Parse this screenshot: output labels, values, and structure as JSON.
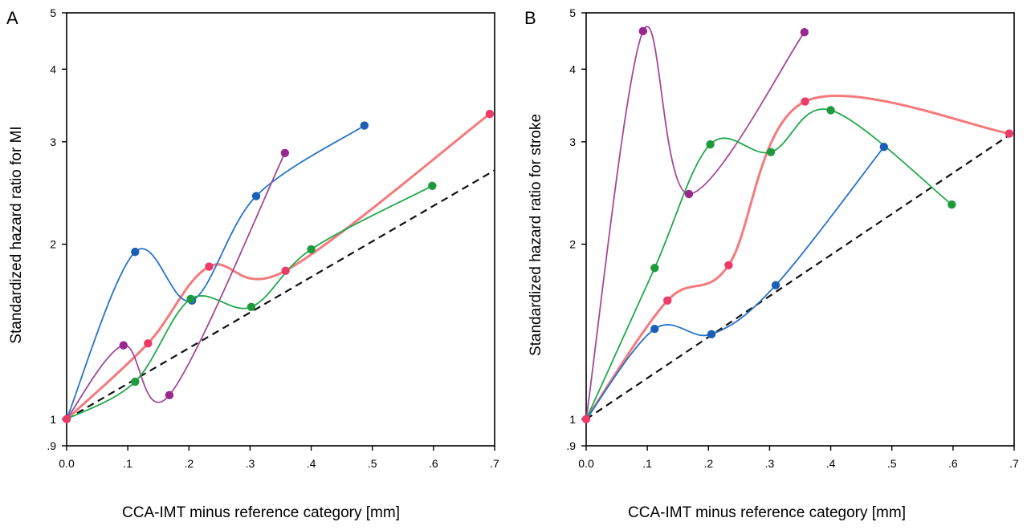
{
  "panels": [
    {
      "letter": "A",
      "ylabel": "Standardized hazard ratio for MI",
      "xlabel": "CCA-IMT minus reference category [mm]",
      "x_ticks": [
        "0.0",
        ".1",
        ".2",
        ".3",
        ".4",
        ".5",
        ".6",
        ".7"
      ],
      "y_ticks": [
        {
          "value": 1,
          "label": "1"
        },
        {
          "value": 2,
          "label": "2"
        },
        {
          "value": 3,
          "label": "3"
        },
        {
          "value": 4,
          "label": "4"
        },
        {
          "value": 5,
          "label": "5"
        }
      ],
      "y_floor_label": ".9"
    },
    {
      "letter": "B",
      "ylabel": "Standardized hazard ratio for stroke",
      "xlabel": "CCA-IMT minus reference category [mm]",
      "x_ticks": [
        "0.0",
        ".1",
        ".2",
        ".3",
        ".4",
        ".5",
        ".6",
        ".7"
      ],
      "y_ticks": [
        {
          "value": 1,
          "label": "1"
        },
        {
          "value": 2,
          "label": "2"
        },
        {
          "value": 3,
          "label": "3"
        },
        {
          "value": 4,
          "label": "4"
        },
        {
          "value": 5,
          "label": "5"
        }
      ],
      "y_floor_label": ".9"
    }
  ],
  "chart_data": [
    {
      "type": "line",
      "panel": "A",
      "xlabel": "CCA-IMT minus reference category [mm]",
      "ylabel": "Standardized hazard ratio for MI",
      "xlim": [
        0,
        0.7
      ],
      "ylim": [
        0.9,
        5
      ],
      "y_scale": "log",
      "grid": false,
      "legend": "none",
      "series": [
        {
          "color": "#f47a7d",
          "marker": "#ec3b68",
          "width": 3,
          "points": [
            [
              0.0,
              1.0
            ],
            [
              0.133,
              1.35
            ],
            [
              0.233,
              1.83
            ],
            [
              0.358,
              1.8
            ],
            [
              0.692,
              3.35
            ]
          ]
        },
        {
          "color": "#2673c8",
          "marker": "#1d5fb8",
          "width": 1.8,
          "points": [
            [
              0.0,
              1.0
            ],
            [
              0.112,
              1.94
            ],
            [
              0.205,
              1.6
            ],
            [
              0.31,
              2.42
            ],
            [
              0.487,
              3.2
            ]
          ]
        },
        {
          "color": "#a24a98",
          "marker": "#98288e",
          "width": 1.8,
          "points": [
            [
              0.0,
              1.0
            ],
            [
              0.093,
              1.34
            ],
            [
              0.168,
              1.1
            ],
            [
              0.357,
              2.87
            ]
          ]
        },
        {
          "color": "#21a84a",
          "marker": "#1d9a3c",
          "width": 1.8,
          "points": [
            [
              0.0,
              1.0
            ],
            [
              0.112,
              1.16
            ],
            [
              0.203,
              1.61
            ],
            [
              0.302,
              1.56
            ],
            [
              0.4,
              1.96
            ],
            [
              0.598,
              2.52
            ]
          ]
        }
      ],
      "reference_line": {
        "style": "dashed",
        "points": [
          [
            0.0,
            1.0
          ],
          [
            0.7,
            2.68
          ]
        ]
      }
    },
    {
      "type": "line",
      "panel": "B",
      "xlabel": "CCA-IMT minus reference category [mm]",
      "ylabel": "Standardized hazard ratio for stroke",
      "xlim": [
        0,
        0.7
      ],
      "ylim": [
        0.9,
        5
      ],
      "y_scale": "log",
      "grid": false,
      "legend": "none",
      "series": [
        {
          "color": "#a24a98",
          "marker": "#98288e",
          "width": 1.8,
          "points": [
            [
              0.0,
              1.0
            ],
            [
              0.093,
              4.65
            ],
            [
              0.168,
              2.44
            ],
            [
              0.357,
              4.63
            ]
          ]
        },
        {
          "color": "#f47a7d",
          "marker": "#ec3b68",
          "width": 3,
          "points": [
            [
              0.0,
              1.0
            ],
            [
              0.133,
              1.6
            ],
            [
              0.233,
              1.84
            ],
            [
              0.358,
              3.52
            ],
            [
              0.692,
              3.1
            ]
          ]
        },
        {
          "color": "#21a84a",
          "marker": "#1d9a3c",
          "width": 1.8,
          "points": [
            [
              0.0,
              1.0
            ],
            [
              0.112,
              1.82
            ],
            [
              0.203,
              2.97
            ],
            [
              0.302,
              2.88
            ],
            [
              0.4,
              3.4
            ],
            [
              0.598,
              2.34
            ]
          ]
        },
        {
          "color": "#2673c8",
          "marker": "#1d5fb8",
          "width": 1.8,
          "points": [
            [
              0.0,
              1.0
            ],
            [
              0.112,
              1.43
            ],
            [
              0.205,
              1.4
            ],
            [
              0.31,
              1.7
            ],
            [
              0.487,
              2.94
            ]
          ]
        }
      ],
      "reference_line": {
        "style": "dashed",
        "points": [
          [
            0.0,
            1.0
          ],
          [
            0.7,
            3.12
          ]
        ]
      }
    }
  ]
}
